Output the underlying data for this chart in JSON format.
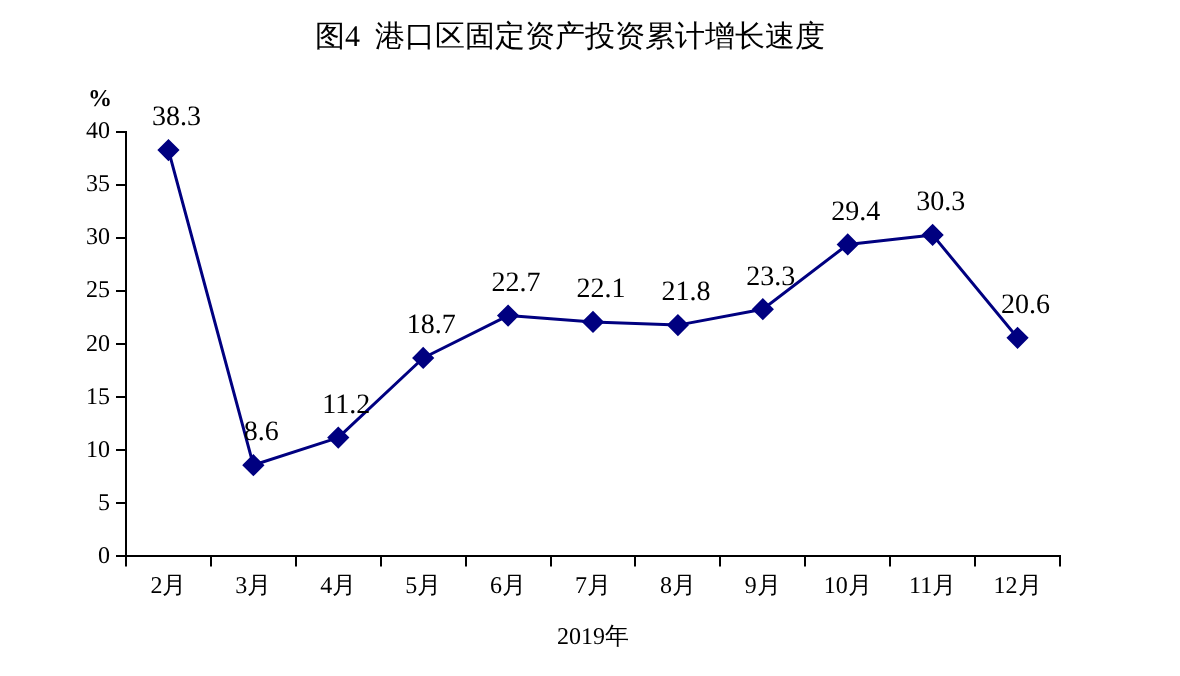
{
  "chart_data": {
    "type": "line",
    "title": "图4  港口区固定资产投资累计增长速度",
    "xlabel": "2019年",
    "ylabel": "%",
    "categories": [
      "2月",
      "3月",
      "4月",
      "5月",
      "6月",
      "7月",
      "8月",
      "9月",
      "10月",
      "11月",
      "12月"
    ],
    "series": [
      {
        "color": "#000080",
        "values": [
          38.3,
          8.6,
          11.2,
          18.7,
          22.7,
          22.1,
          21.8,
          23.3,
          29.4,
          30.3,
          20.6
        ]
      }
    ],
    "ylim": [
      0,
      40
    ],
    "yticks": [
      0,
      5,
      10,
      15,
      20,
      25,
      30,
      35,
      40
    ],
    "grid": false,
    "legend": false,
    "marker": "diamond",
    "line_style": "solid",
    "data_labels": true
  }
}
